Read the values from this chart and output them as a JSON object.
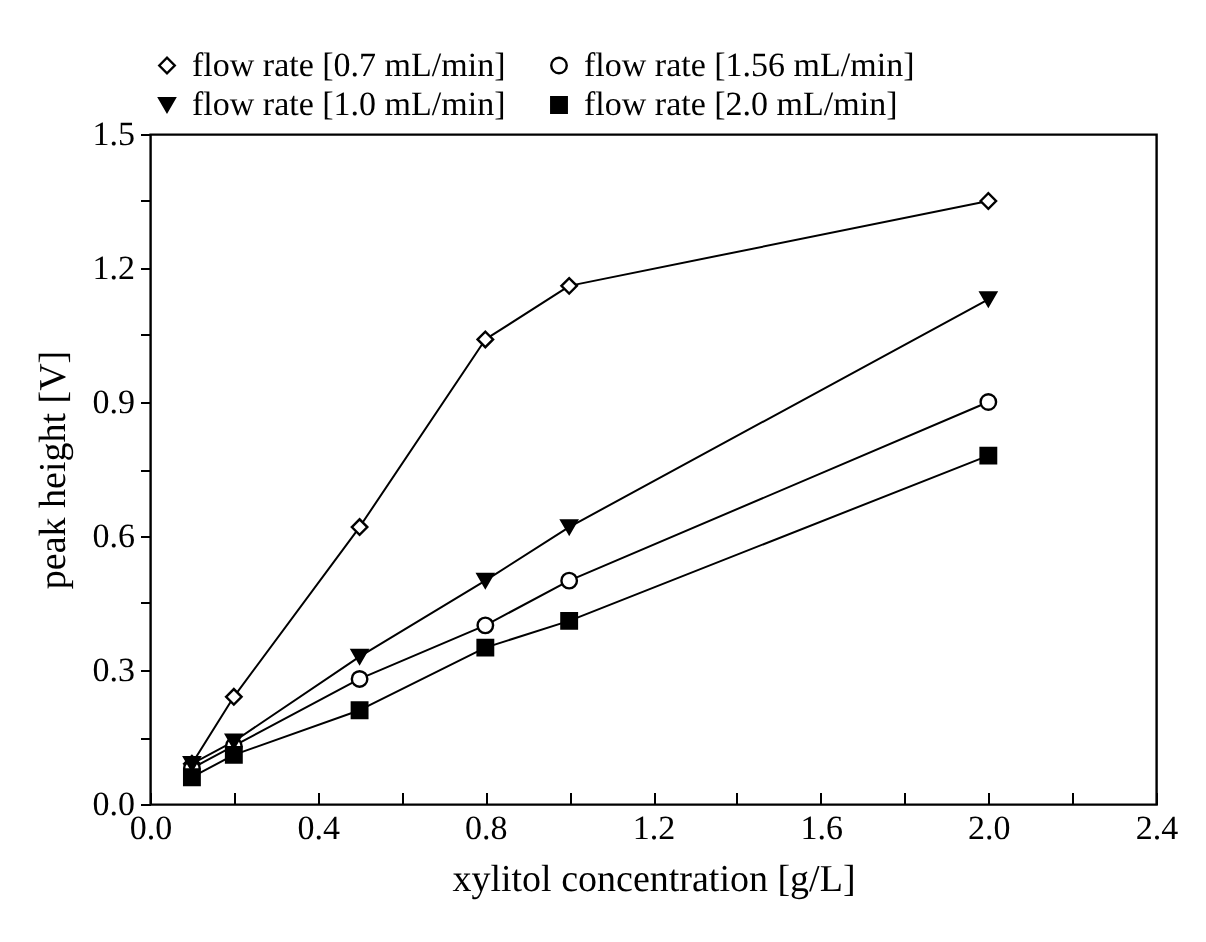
{
  "chart_data": {
    "type": "line",
    "xlabel": "xylitol concentration [g/L]",
    "ylabel": "peak height [V]",
    "x": [
      0.1,
      0.2,
      0.5,
      0.8,
      1.0,
      2.0
    ],
    "xlim": [
      0.0,
      2.4
    ],
    "xticks": [
      {
        "value": 0,
        "label": "0.0"
      },
      {
        "value": 0.2,
        "label": null
      },
      {
        "value": 0.4,
        "label": "0.4"
      },
      {
        "value": 0.6,
        "label": null
      },
      {
        "value": 0.8,
        "label": "0.8"
      },
      {
        "value": 1.0,
        "label": null
      },
      {
        "value": 1.2,
        "label": "1.2"
      },
      {
        "value": 1.4,
        "label": null
      },
      {
        "value": 1.6,
        "label": "1.6"
      },
      {
        "value": 1.8,
        "label": null
      },
      {
        "value": 2.0,
        "label": "2.0"
      },
      {
        "value": 2.2,
        "label": null
      },
      {
        "value": 2.4,
        "label": "2.4"
      }
    ],
    "ylim": [
      0.0,
      1.5
    ],
    "yticks": [
      {
        "value": 0,
        "label": "0.0"
      },
      {
        "value": 0.15,
        "label": null
      },
      {
        "value": 0.3,
        "label": "0.3"
      },
      {
        "value": 0.45,
        "label": null
      },
      {
        "value": 0.6,
        "label": "0.6"
      },
      {
        "value": 0.75,
        "label": null
      },
      {
        "value": 0.9,
        "label": "0.9"
      },
      {
        "value": 1.05,
        "label": null
      },
      {
        "value": 1.2,
        "label": "1.2"
      },
      {
        "value": 1.35,
        "label": null
      },
      {
        "value": 1.5,
        "label": "1.5"
      }
    ],
    "legend": "top",
    "grid": false,
    "series": [
      {
        "name": "flow rate [0.7 mL/min]",
        "color": "#000000",
        "marker": "diamond",
        "values": [
          0.09,
          0.24,
          0.62,
          1.04,
          1.16,
          1.35
        ]
      },
      {
        "name": "flow rate [1.56 mL/min]",
        "color": "#000000",
        "marker": "circle",
        "values": [
          0.08,
          0.13,
          0.28,
          0.4,
          0.5,
          0.9
        ]
      },
      {
        "name": "flow rate [1.0 mL/min]",
        "color": "#000000",
        "marker": "triangle",
        "values": [
          0.09,
          0.14,
          0.33,
          0.5,
          0.62,
          1.13
        ]
      },
      {
        "name": "flow rate [2.0 mL/min]",
        "color": "#000000",
        "marker": "square",
        "values": [
          0.06,
          0.11,
          0.21,
          0.35,
          0.41,
          0.78
        ]
      }
    ]
  }
}
